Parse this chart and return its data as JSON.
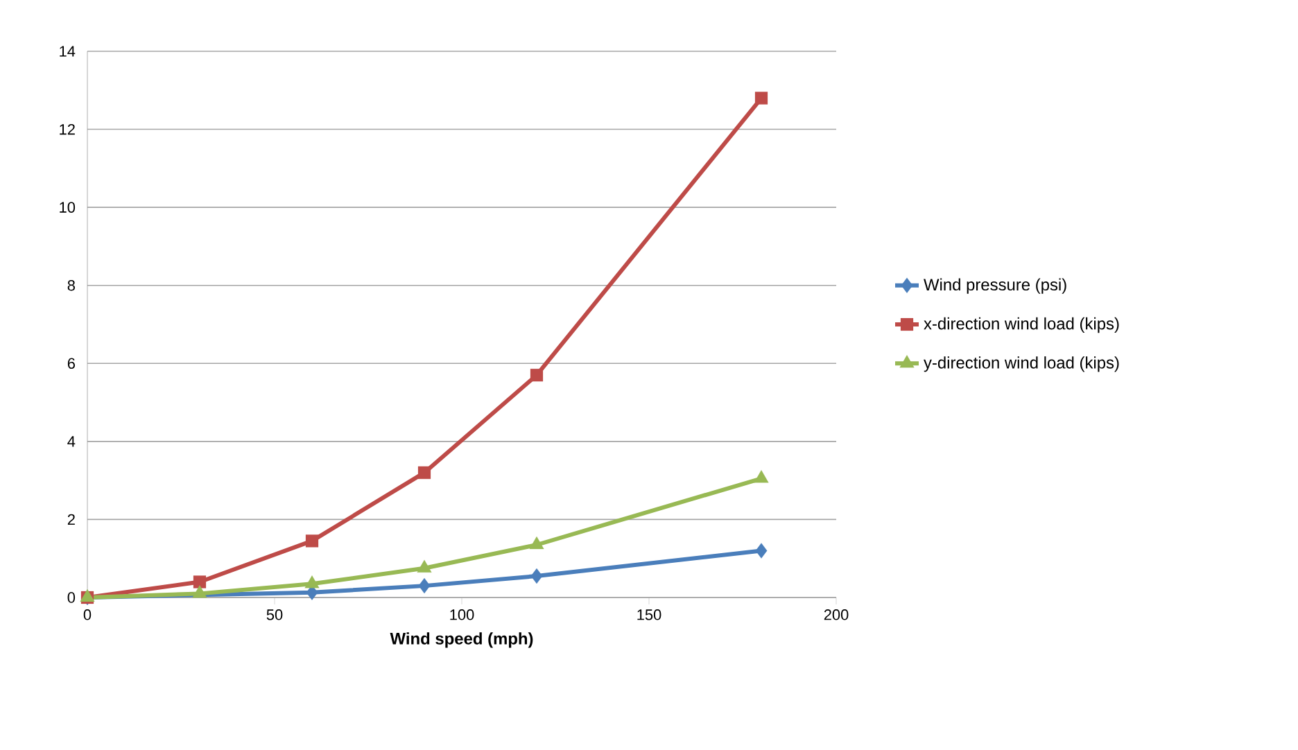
{
  "chart_data": {
    "type": "line",
    "xlabel": "Wind speed (mph)",
    "x": [
      0,
      30,
      60,
      90,
      120,
      180
    ],
    "series": [
      {
        "name": "Wind pressure (psi)",
        "color": "#4a7ebb",
        "marker": "diamond",
        "values": [
          0,
          null,
          0.13,
          0.3,
          0.55,
          1.2
        ]
      },
      {
        "name": "x-direction wind load (kips)",
        "color": "#be4b48",
        "marker": "square",
        "values": [
          0,
          0.4,
          1.45,
          3.2,
          5.7,
          12.8
        ]
      },
      {
        "name": "y-direction wind load (kips)",
        "color": "#98b954",
        "marker": "triangle",
        "values": [
          0,
          0.1,
          0.35,
          0.75,
          1.35,
          3.05
        ]
      }
    ],
    "xlim": [
      0,
      200
    ],
    "xticks": [
      0,
      50,
      100,
      150,
      200
    ],
    "ylim": [
      0,
      14
    ],
    "yticks": [
      0,
      2,
      4,
      6,
      8,
      10,
      12,
      14
    ],
    "grid": "y",
    "legend": "right"
  }
}
